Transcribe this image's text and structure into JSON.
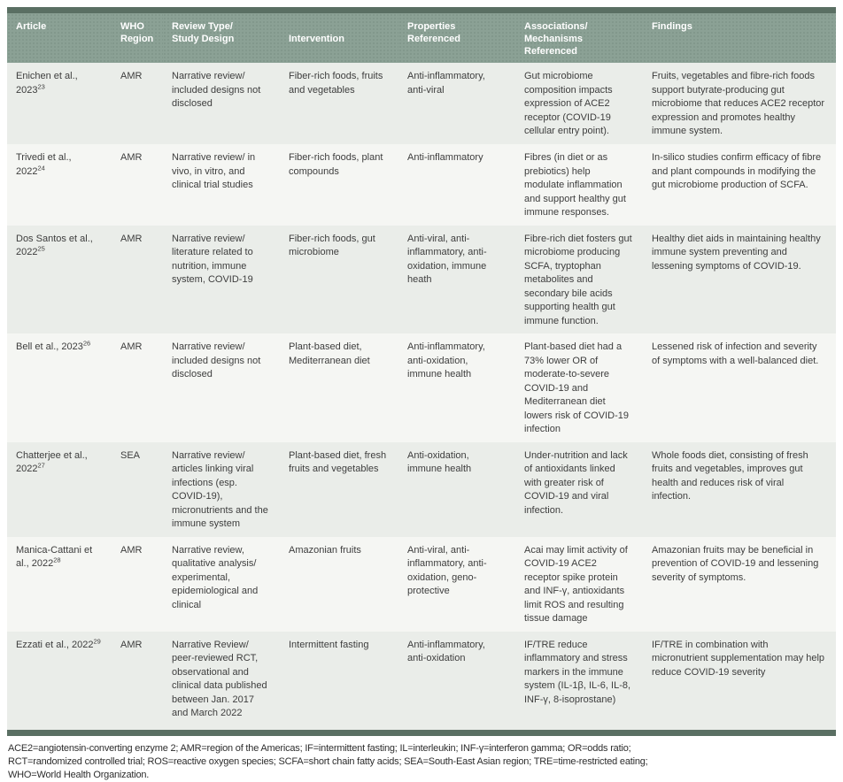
{
  "colors": {
    "header_background": "#8ba195",
    "accent_bar": "#5a6f63",
    "row_odd_background": "#eaede9",
    "row_even_background": "#f5f6f3",
    "header_text": "#ffffff",
    "body_text": "#3d3d3d"
  },
  "table": {
    "headers": [
      {
        "id": "article",
        "label": "Article"
      },
      {
        "id": "who-region",
        "label": "WHO\nRegion"
      },
      {
        "id": "review-type",
        "label": "Review Type/\nStudy Design"
      },
      {
        "id": "intervention",
        "label": "Intervention"
      },
      {
        "id": "properties",
        "label": "Properties\nReferenced"
      },
      {
        "id": "associations",
        "label": "Associations/\nMechanisms\nReferenced"
      },
      {
        "id": "findings",
        "label": "Findings"
      }
    ],
    "rows": [
      {
        "article": "Enichen et al., 2023",
        "article_superscript": "23",
        "who_region": "AMR",
        "review_type_study_design": "Narrative review/ included designs not disclosed",
        "intervention": "Fiber-rich foods, fruits and vegetables",
        "properties_referenced": "Anti-inflammatory, anti-viral",
        "associations_mechanisms_referenced": "Gut microbiome composition impacts expression of ACE2 receptor (COVID-19 cellular entry point).",
        "findings": "Fruits, vegetables and fibre-rich foods support butyrate-producing gut microbiome that reduces ACE2 receptor expression and promotes healthy immune system."
      },
      {
        "article": "Trivedi et al., 2022",
        "article_superscript": "24",
        "who_region": "AMR",
        "review_type_study_design": "Narrative review/ in vivo, in vitro, and clinical trial studies",
        "intervention": "Fiber-rich foods, plant compounds",
        "properties_referenced": "Anti-inflammatory",
        "associations_mechanisms_referenced": "Fibres (in diet or as prebiotics) help modulate inflammation and support healthy gut immune responses.",
        "findings": "In-silico studies confirm efficacy of fibre and plant compounds in modifying the gut microbiome production of SCFA."
      },
      {
        "article": "Dos Santos et al., 2022",
        "article_superscript": "25",
        "who_region": "AMR",
        "review_type_study_design": "Narrative review/ literature related to nutrition, immune system, COVID-19",
        "intervention": "Fiber-rich foods, gut microbiome",
        "properties_referenced": "Anti-viral, anti-inflammatory, anti-oxidation, immune heath",
        "associations_mechanisms_referenced": "Fibre-rich diet fosters gut microbiome producing SCFA, tryptophan metabolites and secondary bile acids supporting health gut immune function.",
        "findings": "Healthy diet aids in maintaining healthy immune system preventing and lessening symptoms of COVID-19."
      },
      {
        "article": "Bell et al., 2023",
        "article_superscript": "26",
        "who_region": "AMR",
        "review_type_study_design": "Narrative review/ included designs not disclosed",
        "intervention": "Plant-based diet, Mediterranean diet",
        "properties_referenced": "Anti-inflammatory, anti-oxidation, immune health",
        "associations_mechanisms_referenced": "Plant-based diet had a 73% lower OR of moderate-to-severe COVID-19 and Mediterranean diet lowers risk of COVID-19 infection",
        "findings": "Lessened risk of infection and severity of symptoms with a well-balanced diet."
      },
      {
        "article": "Chatterjee et al., 2022",
        "article_superscript": "27",
        "who_region": "SEA",
        "review_type_study_design": "Narrative review/ articles linking viral infections (esp. COVID-19), micronutrients and the immune system",
        "intervention": "Plant-based diet, fresh fruits and vegetables",
        "properties_referenced": "Anti-oxidation, immune health",
        "associations_mechanisms_referenced": "Under-nutrition and lack of antioxidants linked with greater risk of COVID-19 and viral infection.",
        "findings": "Whole foods diet, consisting of fresh fruits and vegetables, improves gut health and reduces risk of viral infection."
      },
      {
        "article": "Manica-Cattani et al., 2022",
        "article_superscript": "28",
        "who_region": "AMR",
        "review_type_study_design": "Narrative review, qualitative analysis/ experimental, epidemiological and clinical",
        "intervention": "Amazonian fruits",
        "properties_referenced": "Anti-viral, anti-inflammatory, anti-oxidation, geno-protective",
        "associations_mechanisms_referenced": "Acai may limit activity of COVID-19 ACE2 receptor spike protein and INF-γ, antioxidants limit ROS and resulting tissue damage",
        "findings": "Amazonian fruits may be beneficial in prevention of COVID-19 and lessening severity of symptoms."
      },
      {
        "article": "Ezzati et al., 2022",
        "article_superscript": "29",
        "who_region": "AMR",
        "review_type_study_design": "Narrative Review/ peer-reviewed RCT, observational and clinical data published between Jan. 2017 and March 2022",
        "intervention": "Intermittent fasting",
        "properties_referenced": "Anti-inflammatory, anti-oxidation",
        "associations_mechanisms_referenced": "IF/TRE reduce inflammatory and stress markers in the immune system (IL-1β, IL-6, IL-8, INF-γ, 8-isoprostane)",
        "findings": "IF/TRE in combination with micronutrient supplementation may help reduce COVID-19 severity"
      }
    ]
  },
  "footnote": {
    "lines": [
      "ACE2=angiotensin-converting enzyme 2; AMR=region of the Americas; IF=intermittent fasting; IL=interleukin; INF-γ=interferon gamma; OR=odds ratio;",
      "RCT=randomized controlled trial; ROS=reactive oxygen species; SCFA=short chain fatty acids; SEA=South-East Asian region; TRE=time-restricted eating;",
      "WHO=World Health Organization."
    ]
  }
}
